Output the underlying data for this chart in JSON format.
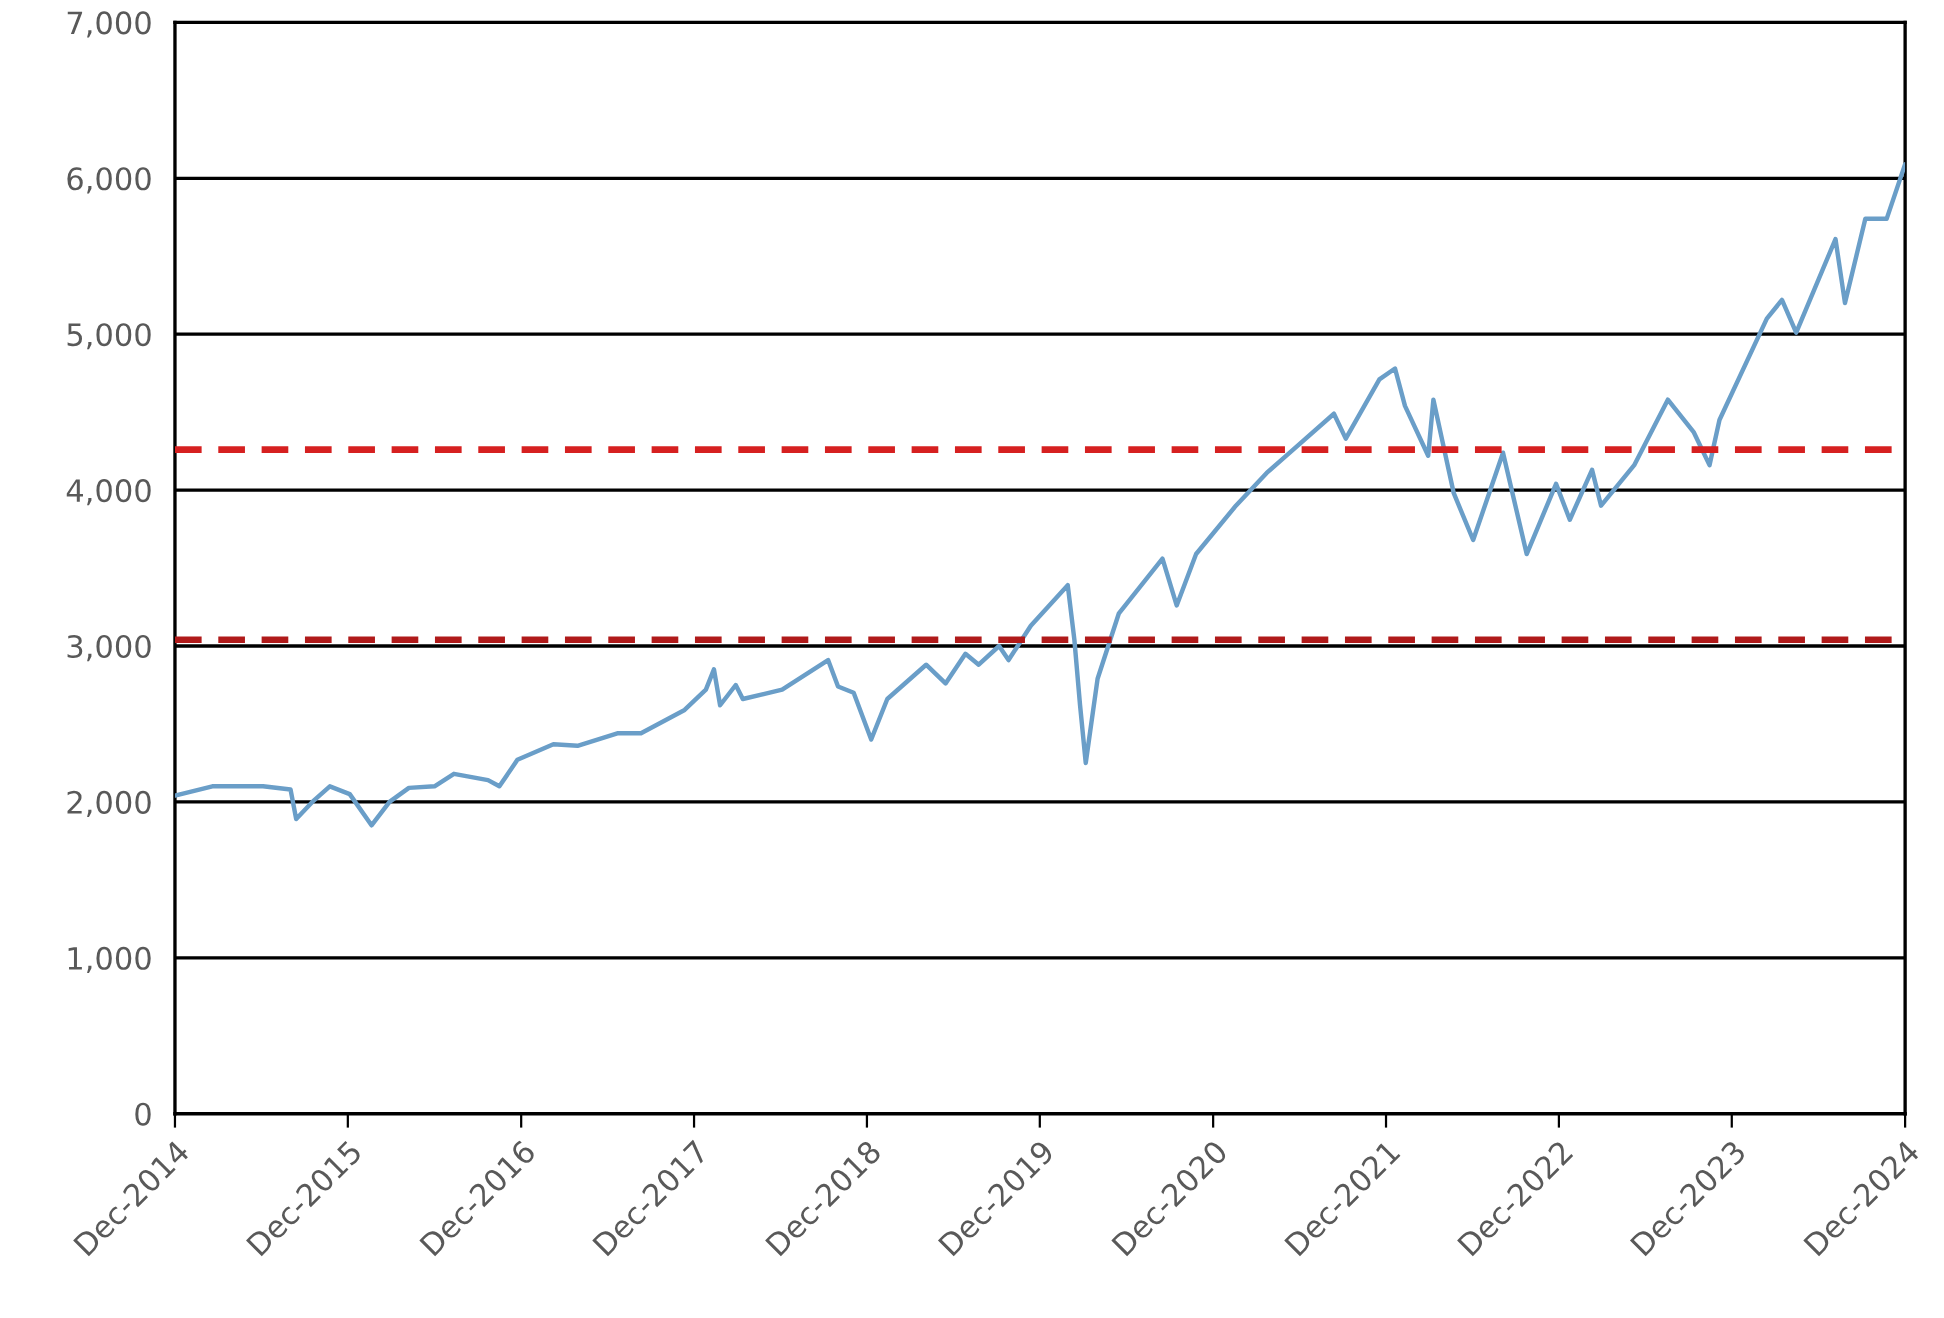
{
  "chart_data": {
    "type": "line",
    "x": [
      "2014-12-01",
      "2015-02-18",
      "2015-06-05",
      "2015-08-02",
      "2015-08-14",
      "2015-09-17",
      "2015-10-24",
      "2015-12-05",
      "2016-01-20",
      "2016-02-27",
      "2016-04-08",
      "2016-06-01",
      "2016-07-12",
      "2016-09-22",
      "2016-10-16",
      "2016-11-23",
      "2017-02-07",
      "2017-03-30",
      "2017-06-22",
      "2017-08-11",
      "2017-11-11",
      "2017-12-26",
      "2018-01-12",
      "2018-01-25",
      "2018-02-27",
      "2018-03-14",
      "2018-06-05",
      "2018-09-10",
      "2018-10-01",
      "2018-11-03",
      "2018-12-10",
      "2019-01-13",
      "2019-04-05",
      "2019-05-16",
      "2019-06-27",
      "2019-07-25",
      "2019-09-06",
      "2019-09-26",
      "2019-11-12",
      "2020-01-29",
      "2020-02-12",
      "2020-02-24",
      "2020-03-07",
      "2020-04-01",
      "2020-05-16",
      "2020-08-16",
      "2020-09-15",
      "2020-10-26",
      "2021-01-18",
      "2021-03-24",
      "2021-05-04",
      "2021-08-13",
      "2021-09-07",
      "2021-11-17",
      "2021-12-20",
      "2022-01-10",
      "2022-02-28",
      "2022-03-11",
      "2022-04-23",
      "2022-06-03",
      "2022-08-05",
      "2022-09-24",
      "2022-11-25",
      "2022-12-24",
      "2023-02-09",
      "2023-02-28",
      "2023-05-09",
      "2023-07-19",
      "2023-09-12",
      "2023-10-15",
      "2023-11-05",
      "2024-02-13",
      "2024-03-16",
      "2024-04-15",
      "2024-07-07",
      "2024-07-27",
      "2024-09-08",
      "2024-10-23",
      "2024-12-01"
    ],
    "series": [
      {
        "color": "#6a9ec8",
        "values": [
          2040,
          2100,
          2100,
          2080,
          1890,
          2000,
          2100,
          2050,
          1850,
          2000,
          2090,
          2100,
          2180,
          2140,
          2100,
          2270,
          2370,
          2360,
          2440,
          2440,
          2590,
          2720,
          2850,
          2620,
          2750,
          2660,
          2720,
          2910,
          2740,
          2700,
          2400,
          2660,
          2880,
          2760,
          2950,
          2880,
          3000,
          2910,
          3130,
          3390,
          3040,
          2620,
          2250,
          2790,
          3210,
          3560,
          3260,
          3590,
          3900,
          4110,
          4220,
          4490,
          4330,
          4710,
          4780,
          4540,
          4220,
          4580,
          3980,
          3680,
          4240,
          3590,
          4040,
          3810,
          4130,
          3900,
          4160,
          4580,
          4370,
          4160,
          4450,
          5100,
          5220,
          5010,
          5610,
          5200,
          5740,
          5740,
          6090
        ]
      }
    ],
    "xlim": [
      "2014-12-01",
      "2024-12-01"
    ],
    "xticks": [
      {
        "value": "2014-12-01",
        "label": "Dec-2014"
      },
      {
        "value": "2015-12-01",
        "label": "Dec-2015"
      },
      {
        "value": "2016-12-01",
        "label": "Dec-2016"
      },
      {
        "value": "2017-12-01",
        "label": "Dec-2017"
      },
      {
        "value": "2018-12-01",
        "label": "Dec-2018"
      },
      {
        "value": "2019-12-01",
        "label": "Dec-2019"
      },
      {
        "value": "2020-12-01",
        "label": "Dec-2020"
      },
      {
        "value": "2021-12-01",
        "label": "Dec-2021"
      },
      {
        "value": "2022-12-01",
        "label": "Dec-2022"
      },
      {
        "value": "2023-12-01",
        "label": "Dec-2023"
      },
      {
        "value": "2024-12-01",
        "label": "Dec-2024"
      }
    ],
    "ylim": [
      0,
      7000
    ],
    "yticks": [
      0,
      {
        "value": 1000,
        "label": "1,000"
      },
      {
        "value": 2000,
        "label": "2,000"
      },
      {
        "value": 3000,
        "label": "3,000"
      },
      {
        "value": 4000,
        "label": "4,000"
      },
      {
        "value": 5000,
        "label": "5,000"
      },
      {
        "value": 6000,
        "label": "6,000"
      },
      {
        "value": 7000,
        "label": "7,000"
      }
    ],
    "grid": "y",
    "line_style": "solid",
    "ref_lines": [
      {
        "axis": "y",
        "value": 4260,
        "color": "#d62020",
        "line_style": "dashed"
      },
      {
        "axis": "y",
        "value": 3040,
        "color": "#b01a1a",
        "line_style": "dashed"
      }
    ]
  }
}
